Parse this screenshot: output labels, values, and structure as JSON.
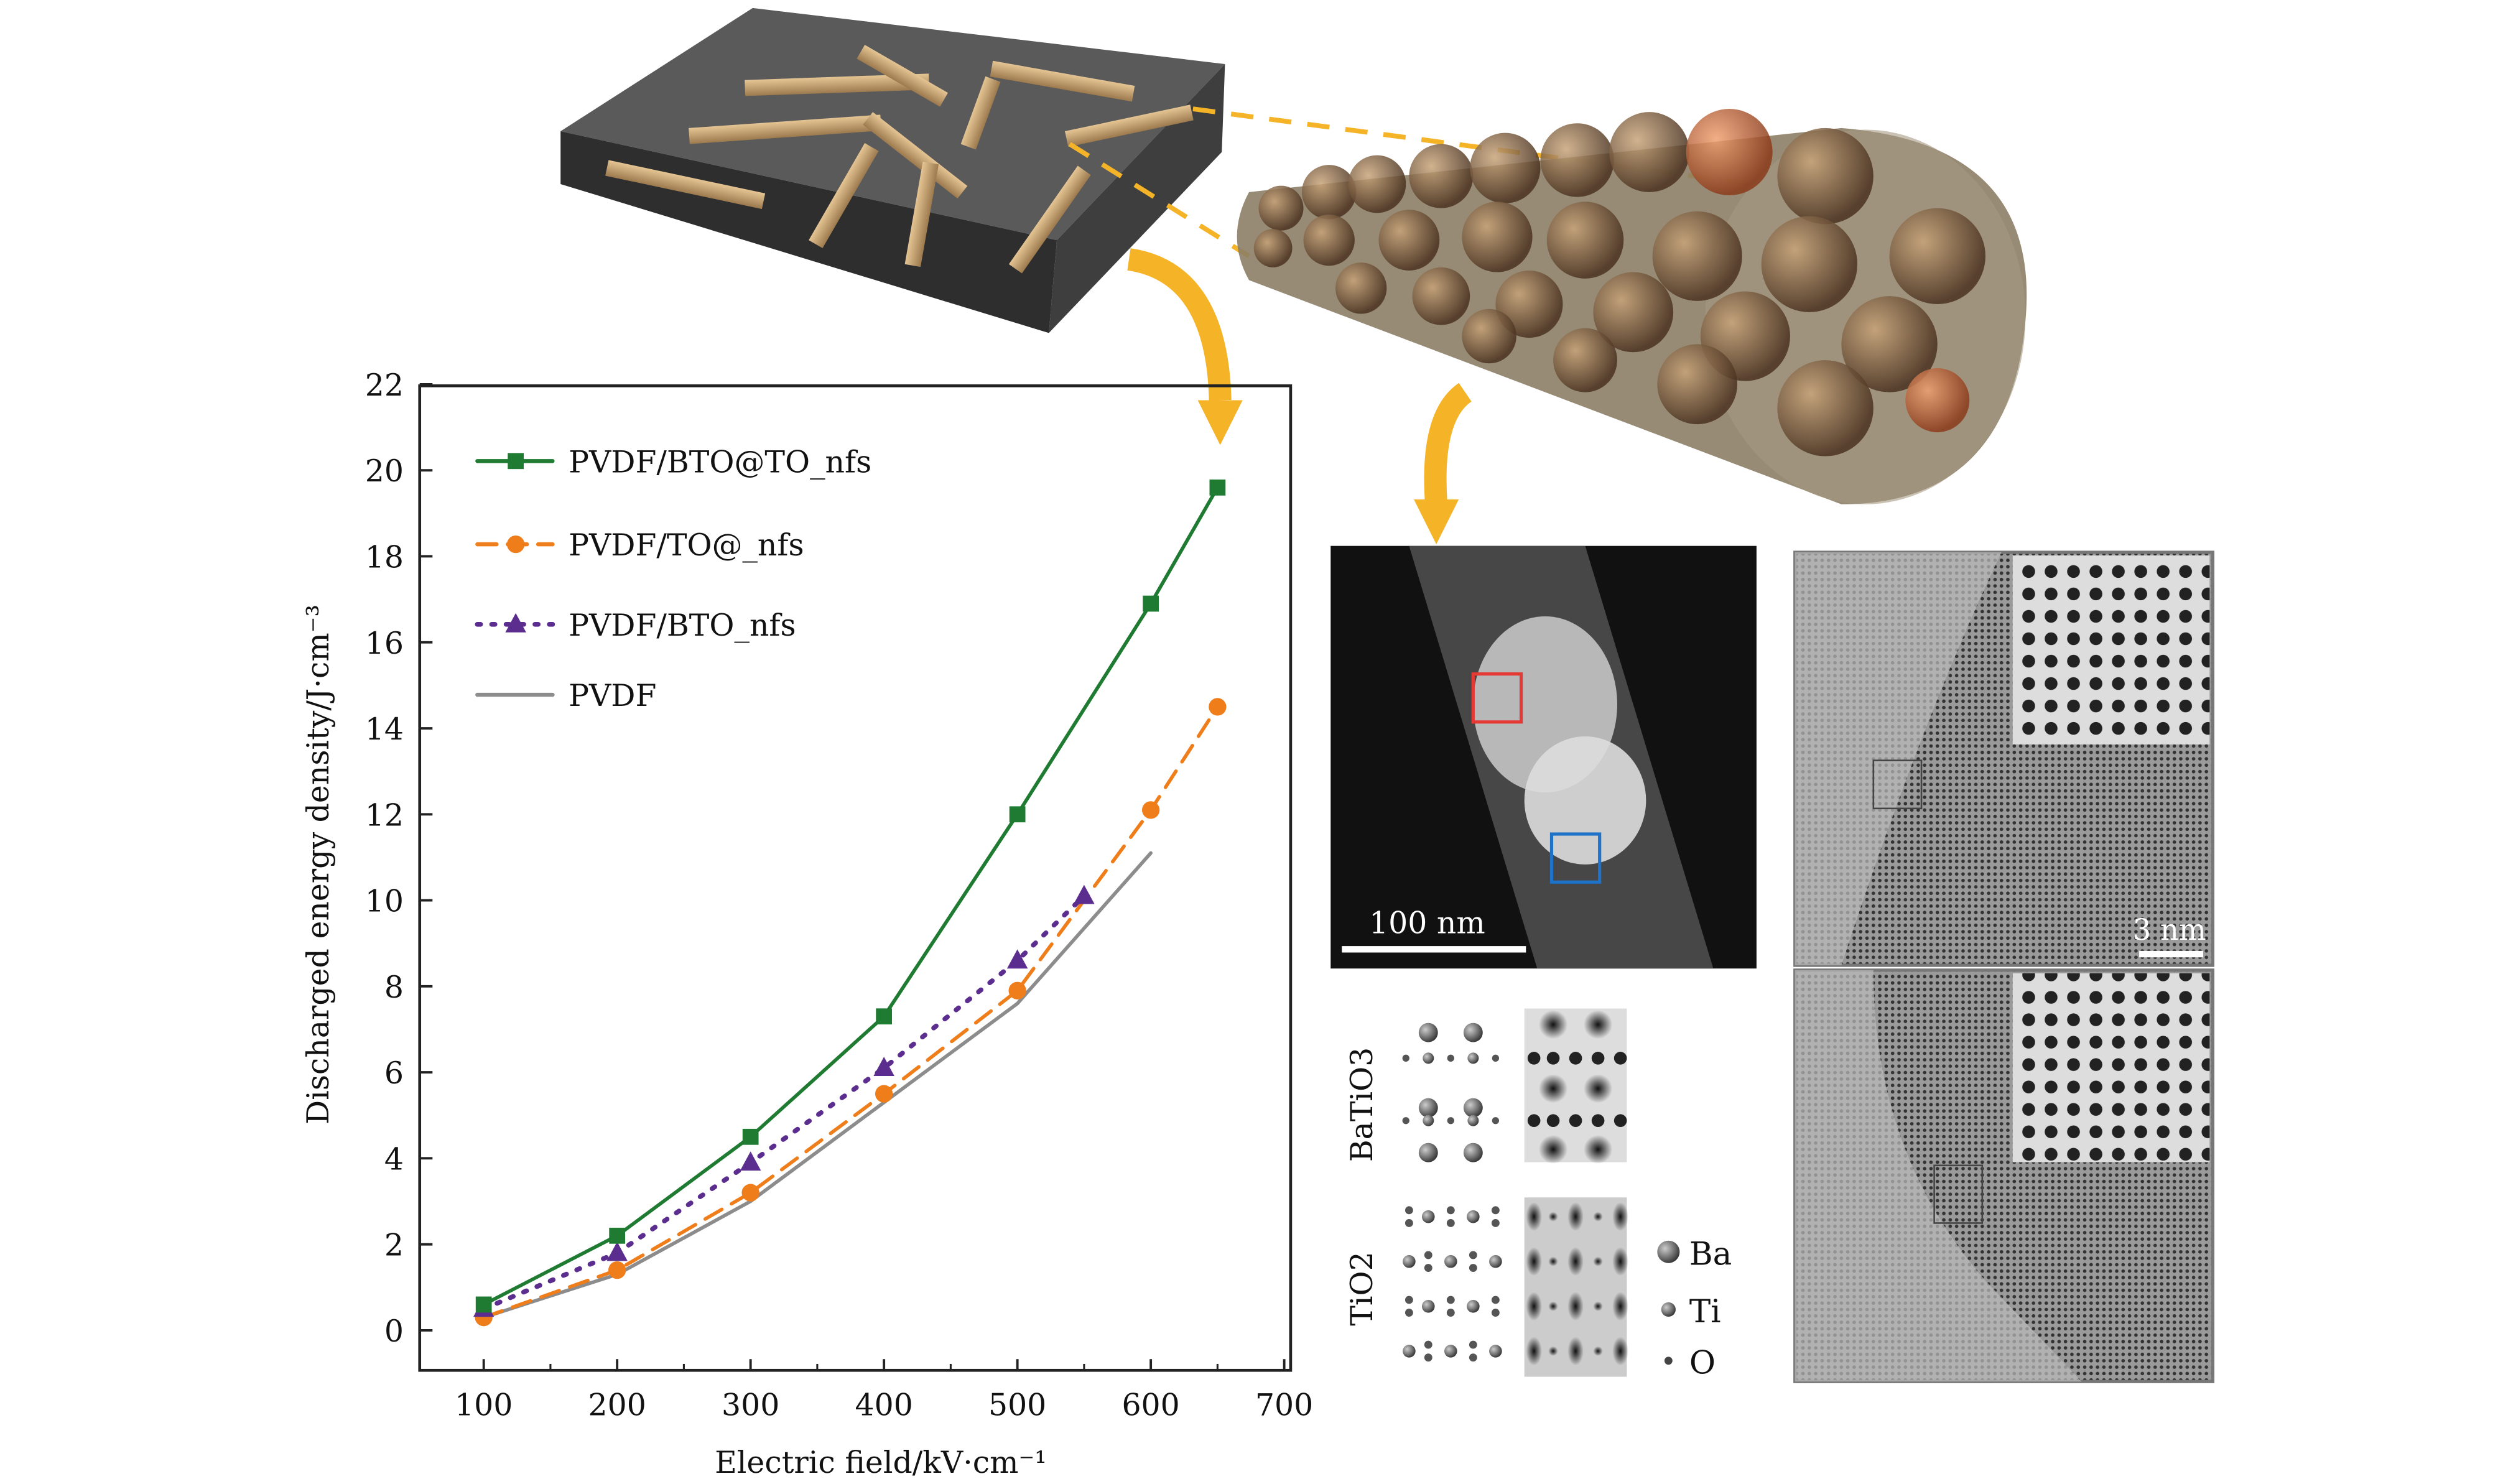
{
  "colors": {
    "green": "#1f7a32",
    "orange": "#ee7d1a",
    "purple": "#5b2d8e",
    "gray": "#8c8c8c",
    "arrow": "#f5b427"
  },
  "chart_data": {
    "type": "line",
    "xlabel": "Electric field/kV·cm⁻¹",
    "ylabel": "Discharged energy density/J·cm⁻³",
    "xlim": [
      50,
      700
    ],
    "ylim": [
      -1,
      22
    ],
    "xticks": [
      100,
      200,
      300,
      400,
      500,
      600,
      700
    ],
    "yticks": [
      0,
      2,
      4,
      6,
      8,
      10,
      12,
      14,
      16,
      18,
      20,
      22
    ],
    "grid": false,
    "legend": "top-left",
    "series": [
      {
        "name": "PVDF/BTO@TO_nfs",
        "color": "#1f7a32",
        "marker": "square",
        "dash": "solid",
        "x": [
          100,
          200,
          300,
          400,
          500,
          600,
          650
        ],
        "y": [
          0.6,
          2.2,
          4.5,
          7.3,
          12.0,
          16.9,
          19.6
        ]
      },
      {
        "name": "PVDF/TO@_nfs",
        "color": "#ee7d1a",
        "marker": "circle",
        "dash": "dashed",
        "x": [
          100,
          200,
          300,
          400,
          500,
          600,
          650
        ],
        "y": [
          0.3,
          1.4,
          3.2,
          5.5,
          7.9,
          12.1,
          14.5
        ]
      },
      {
        "name": "PVDF/BTO_nfs",
        "color": "#5b2d8e",
        "marker": "triangle",
        "dash": "dotted",
        "x": [
          100,
          200,
          300,
          400,
          500,
          550
        ],
        "y": [
          0.5,
          1.8,
          3.9,
          6.1,
          8.6,
          10.1
        ]
      },
      {
        "name": "PVDF",
        "color": "#8c8c8c",
        "marker": "none",
        "dash": "solid",
        "x": [
          100,
          200,
          300,
          400,
          500,
          600
        ],
        "y": [
          0.3,
          1.3,
          3.0,
          5.3,
          7.6,
          11.1
        ]
      }
    ]
  },
  "tem": {
    "scale_bar": "100 nm"
  },
  "hrtem": {
    "scale_bar": "3 nm"
  },
  "structures": {
    "batio3": "BaTiO3",
    "tio2": "TiO2"
  },
  "atom_legend": [
    {
      "label": "Ba"
    },
    {
      "label": "Ti"
    },
    {
      "label": "O"
    }
  ]
}
